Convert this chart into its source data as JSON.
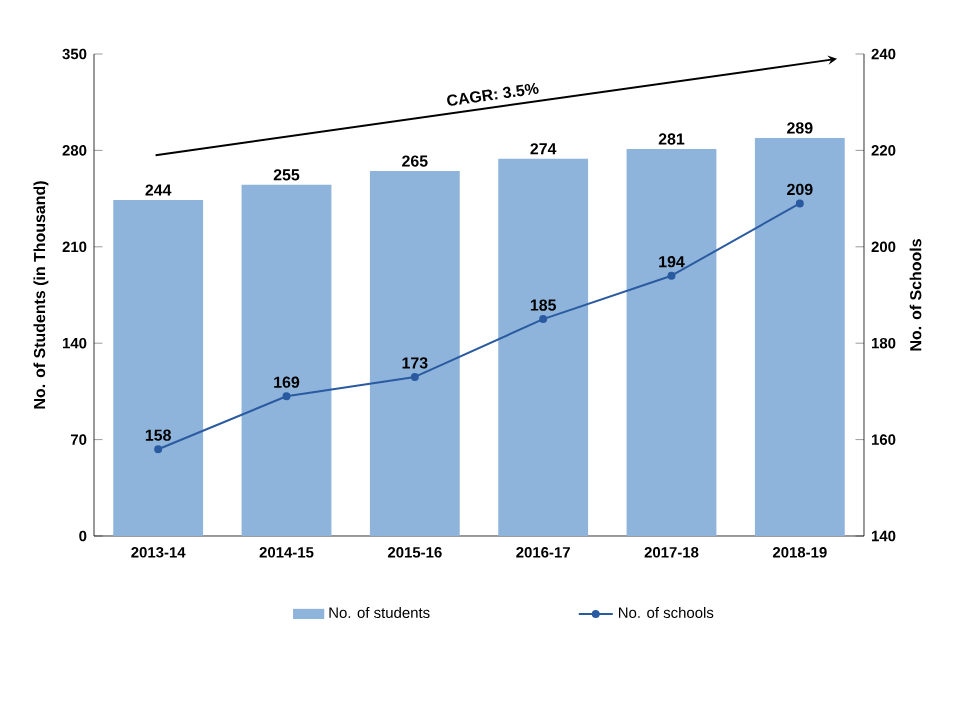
{
  "chart_data": {
    "type": "bar",
    "categories": [
      "2013-14",
      "2014-15",
      "2015-16",
      "2016-17",
      "2017-18",
      "2018-19"
    ],
    "ylabel": "No. of Students (in Thousand)",
    "y2label": "No. of Schools",
    "series": [
      {
        "name": "No. of students",
        "color": "#8eb4dc",
        "values": [
          244,
          255,
          265,
          274,
          281,
          289
        ]
      },
      {
        "name": "No. of schools",
        "type": "line",
        "axis": "y2",
        "color": "#2a5aa0",
        "marker": "circle",
        "values": [
          158,
          169,
          173,
          185,
          194,
          209
        ]
      }
    ],
    "ylim": [
      0,
      350
    ],
    "yticks": [
      0,
      70,
      140,
      210,
      280,
      350
    ],
    "y2lim": [
      140,
      240
    ],
    "y2ticks": [
      140,
      160,
      180,
      200,
      220,
      240
    ],
    "data_labels": true,
    "legend": "bottom",
    "grid": false,
    "annotations": [
      "CAGR: 3.5%"
    ]
  }
}
